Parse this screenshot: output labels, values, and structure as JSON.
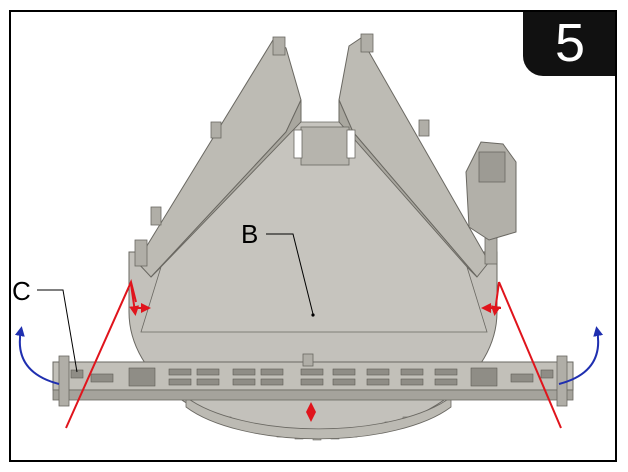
{
  "step": {
    "number": "5"
  },
  "labels": {
    "b": "B",
    "c": "C"
  },
  "colors": {
    "part_fill": "#c9c7c1",
    "part_dark": "#a3a19b",
    "part_edge": "#6a6862",
    "fold_arrow": "#e0141c",
    "rotate_arrow": "#1f2fb0",
    "badge_bg": "#111111",
    "badge_text": "#ffffff"
  }
}
